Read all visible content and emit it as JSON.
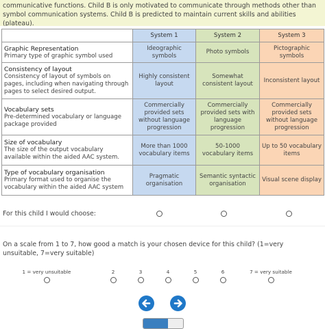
{
  "intro": "Child B has delayed expressive and receptive language and able to use aided AAC for a few communicative functions. Child B is only motivated to communicate through methods other than symbol communication systems. Child B is predicted to maintain current skills and abilities (plateau).",
  "table": {
    "header": [
      "System 1",
      "System 2",
      "System 3"
    ],
    "rows": [
      {
        "title": "Graphic Representation",
        "desc": "Primary type of graphic symbol used",
        "options": [
          "Ideographic symbols",
          "Photo symbols",
          "Pictographic symbols"
        ]
      },
      {
        "title": "Consistency of layout",
        "desc": "Consistency of layout of symbols on pages, including when navigating through pages to select desired output.",
        "options": [
          "Highly consistent layout",
          "Somewhat consistent layout",
          "Inconsistent layout"
        ]
      },
      {
        "title": "Vocabulary sets",
        "desc": "Pre-determined vocabulary or language package provided",
        "options": [
          "Commercially provided sets without language progression",
          "Commercially provided sets with language progression",
          "Commercially provided sets without language progression"
        ]
      },
      {
        "title": "Size of vocabulary",
        "desc": "The size of the output vocabulary available within the aided AAC system.",
        "options": [
          "More than 1000 vocabulary items",
          "50-1000 vocabulary items",
          "Up to 50 vocabulary items"
        ]
      },
      {
        "title": "Type of vocabulary organisation",
        "desc": "Primary format used to organise the vocabulary within the aided AAC system",
        "options": [
          "Pragmatic organisation",
          "Semantic syntactic organisation",
          "Visual scene display"
        ]
      }
    ]
  },
  "choice_question": "For this child I would choose:",
  "scale_question": "On a scale from 1 to 7, how good a match is your chosen device for this child? (1=very unsuitable, 7=very suitable)",
  "scale_labels": [
    "1 = very unsuitable",
    "2",
    "3",
    "4",
    "5",
    "6",
    "7 = very suitable"
  ]
}
